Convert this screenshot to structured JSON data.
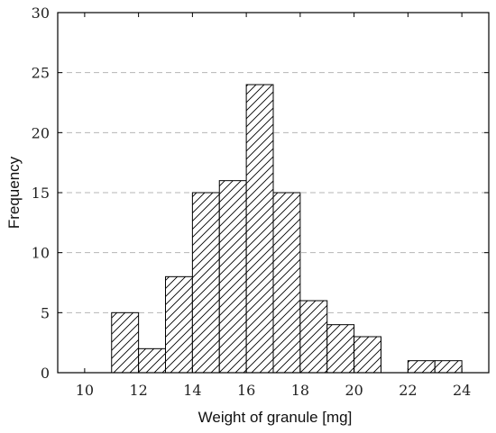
{
  "chart_data": {
    "type": "bar",
    "histogram": true,
    "bins": [
      {
        "x0": 11,
        "x1": 12,
        "value": 5
      },
      {
        "x0": 12,
        "x1": 13,
        "value": 2
      },
      {
        "x0": 13,
        "x1": 14,
        "value": 8
      },
      {
        "x0": 14,
        "x1": 15,
        "value": 15
      },
      {
        "x0": 15,
        "x1": 16,
        "value": 16
      },
      {
        "x0": 16,
        "x1": 17,
        "value": 24
      },
      {
        "x0": 17,
        "x1": 18,
        "value": 15
      },
      {
        "x0": 18,
        "x1": 19,
        "value": 6
      },
      {
        "x0": 19,
        "x1": 20,
        "value": 4
      },
      {
        "x0": 20,
        "x1": 21,
        "value": 3
      },
      {
        "x0": 22,
        "x1": 23,
        "value": 1
      },
      {
        "x0": 23,
        "x1": 24,
        "value": 1
      }
    ],
    "xlabel": "Weight of granule [mg]",
    "ylabel": "Frequency",
    "xlim": [
      9,
      25
    ],
    "ylim": [
      0,
      30
    ],
    "xticks": [
      "10",
      "12",
      "14",
      "16",
      "18",
      "20",
      "22",
      "24"
    ],
    "yticks": [
      "0",
      "5",
      "10",
      "15",
      "20",
      "25",
      "30"
    ],
    "fill": "diagonal hatch",
    "grid": "horizontal dashed",
    "colors": {
      "frame": "#000000",
      "grid": "#b5b5b5",
      "bar_fill": "#ffffff",
      "hatch": "#000000"
    }
  }
}
